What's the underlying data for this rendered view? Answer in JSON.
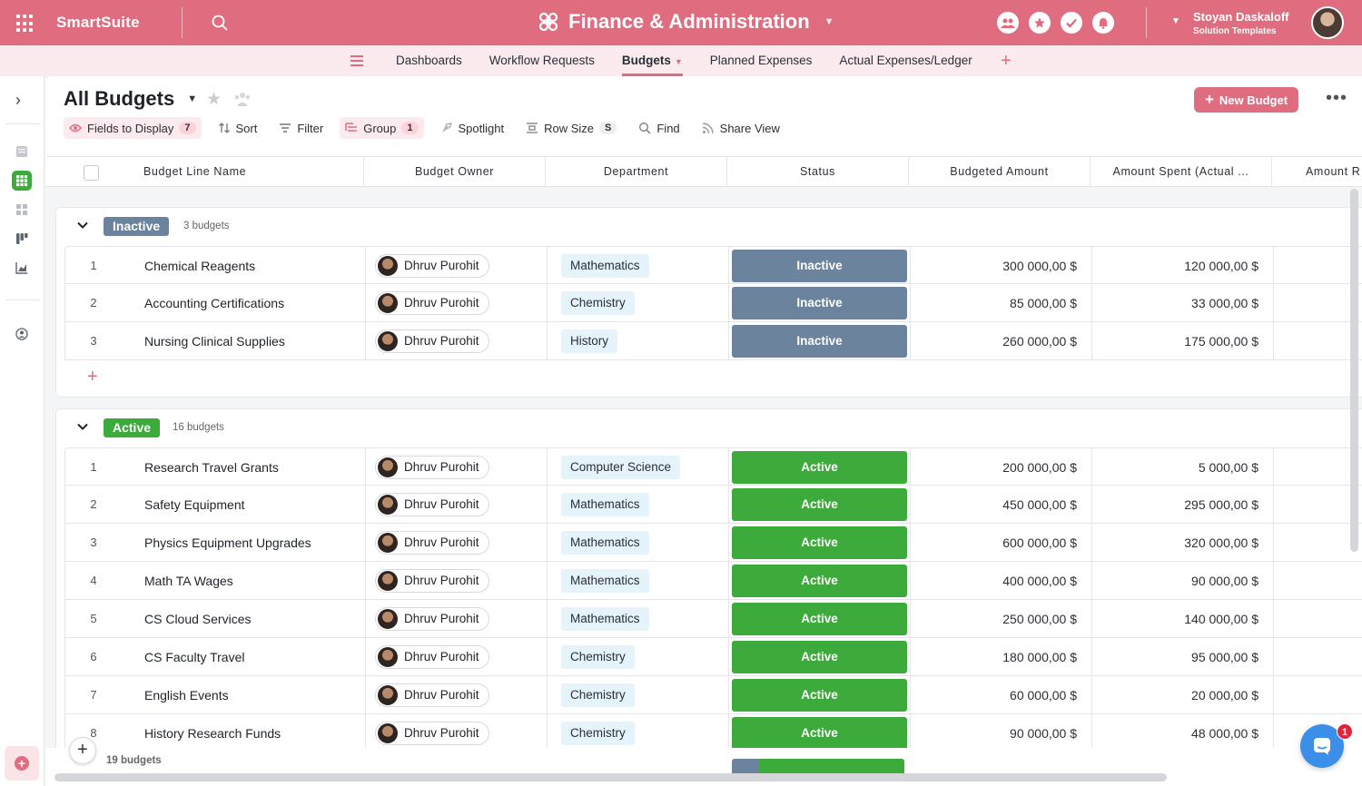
{
  "app": {
    "brand": "SmartSuite",
    "workspace_title": "Finance & Administration",
    "user_name": "Stoyan Daskaloff",
    "user_role": "Solution Templates"
  },
  "nav": {
    "tabs": [
      {
        "label": "Dashboards"
      },
      {
        "label": "Workflow Requests"
      },
      {
        "label": "Budgets"
      },
      {
        "label": "Planned Expenses"
      },
      {
        "label": "Actual Expenses/Ledger"
      }
    ],
    "active_tab": "Budgets",
    "add_symbol": "+"
  },
  "view": {
    "title": "All Budgets",
    "new_button": "New Budget",
    "more_symbol": "•••"
  },
  "toolbar": {
    "fields_label": "Fields to Display",
    "fields_count": "7",
    "sort_label": "Sort",
    "filter_label": "Filter",
    "group_label": "Group",
    "group_count": "1",
    "spotlight_label": "Spotlight",
    "rowsize_label": "Row Size",
    "rowsize_value": "S",
    "find_label": "Find",
    "share_label": "Share View"
  },
  "table": {
    "columns": [
      {
        "label": "Budget Line Name"
      },
      {
        "label": "Budget Owner"
      },
      {
        "label": "Department"
      },
      {
        "label": "Status"
      },
      {
        "label": "Budgeted Amount"
      },
      {
        "label": "Amount Spent (Actual ..."
      },
      {
        "label": "Amount R"
      }
    ]
  },
  "groups": [
    {
      "status": "Inactive",
      "count_label": "3 budgets",
      "color": "#6b839d",
      "rows": [
        {
          "num": "1",
          "name": "Chemical Reagents",
          "owner": "Dhruv Purohit",
          "department": "Mathematics",
          "status": "Inactive",
          "budgeted": "300 000,00 $",
          "spent": "120 000,00 $"
        },
        {
          "num": "2",
          "name": "Accounting Certifications",
          "owner": "Dhruv Purohit",
          "department": "Chemistry",
          "status": "Inactive",
          "budgeted": "85 000,00 $",
          "spent": "33 000,00 $"
        },
        {
          "num": "3",
          "name": "Nursing Clinical Supplies",
          "owner": "Dhruv Purohit",
          "department": "History",
          "status": "Inactive",
          "budgeted": "260 000,00 $",
          "spent": "175 000,00 $"
        }
      ]
    },
    {
      "status": "Active",
      "count_label": "16 budgets",
      "color": "#3cab3c",
      "rows": [
        {
          "num": "1",
          "name": "Research Travel Grants",
          "owner": "Dhruv Purohit",
          "department": "Computer Science",
          "status": "Active",
          "budgeted": "200 000,00 $",
          "spent": "5 000,00 $"
        },
        {
          "num": "2",
          "name": "Safety Equipment",
          "owner": "Dhruv Purohit",
          "department": "Mathematics",
          "status": "Active",
          "budgeted": "450 000,00 $",
          "spent": "295 000,00 $"
        },
        {
          "num": "3",
          "name": "Physics Equipment Upgrades",
          "owner": "Dhruv Purohit",
          "department": "Mathematics",
          "status": "Active",
          "budgeted": "600 000,00 $",
          "spent": "320 000,00 $"
        },
        {
          "num": "4",
          "name": "Math TA Wages",
          "owner": "Dhruv Purohit",
          "department": "Mathematics",
          "status": "Active",
          "budgeted": "400 000,00 $",
          "spent": "90 000,00 $"
        },
        {
          "num": "5",
          "name": "CS Cloud Services",
          "owner": "Dhruv Purohit",
          "department": "Mathematics",
          "status": "Active",
          "budgeted": "250 000,00 $",
          "spent": "140 000,00 $"
        },
        {
          "num": "6",
          "name": "CS Faculty Travel",
          "owner": "Dhruv Purohit",
          "department": "Chemistry",
          "status": "Active",
          "budgeted": "180 000,00 $",
          "spent": "95 000,00 $"
        },
        {
          "num": "7",
          "name": "English Events",
          "owner": "Dhruv Purohit",
          "department": "Chemistry",
          "status": "Active",
          "budgeted": "60 000,00 $",
          "spent": "20 000,00 $"
        },
        {
          "num": "8",
          "name": "History Research Funds",
          "owner": "Dhruv Purohit",
          "department": "Chemistry",
          "status": "Active",
          "budgeted": "90 000,00 $",
          "spent": "48 000,00 $"
        }
      ]
    }
  ],
  "footer": {
    "total_label": "19 budgets",
    "status_summary": [
      {
        "status": "Inactive",
        "count": 3,
        "color": "#6b839d"
      },
      {
        "status": "Active",
        "count": 16,
        "color": "#3cab3c"
      }
    ]
  },
  "chat": {
    "badge": "1"
  },
  "colors": {
    "accent": "#e06c7f",
    "inactive": "#6b839d",
    "active": "#3cab3c",
    "dept_chip_bg": "#e5f3fb"
  }
}
